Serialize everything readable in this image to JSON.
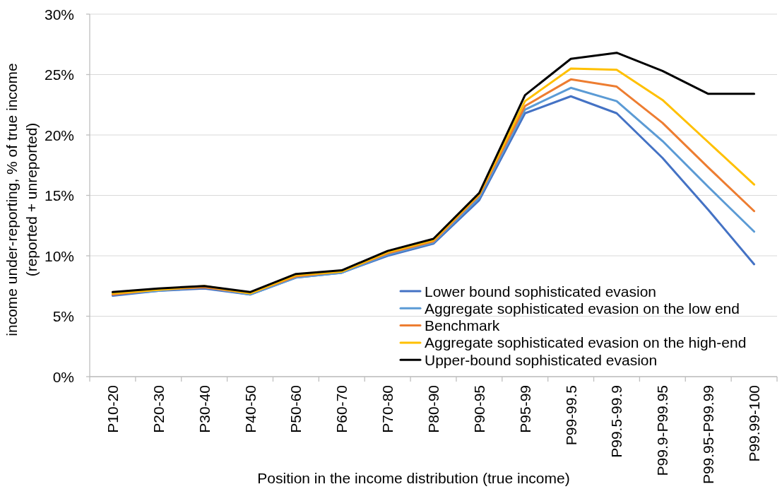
{
  "chart_data": {
    "type": "line",
    "categories": [
      "P10-20",
      "P20-30",
      "P30-40",
      "P40-50",
      "P50-60",
      "P60-70",
      "P70-80",
      "P80-90",
      "P90-95",
      "P95-99",
      "P99-99.5",
      "P99.5-99.9",
      "P99.9-P99.95",
      "P99.95-P99.99",
      "P99.99-100"
    ],
    "xlabel": "Position in the income distribution (true income)",
    "ylabel": "income under-reporting, % of true income\n(reported + unreported)",
    "series": [
      {
        "name": "Lower bound sophisticated evasion",
        "color": "#4472c4",
        "values": [
          6.7,
          7.1,
          7.3,
          6.8,
          8.2,
          8.6,
          10.0,
          11.0,
          14.6,
          21.8,
          23.2,
          21.8,
          18.1,
          13.8,
          9.3
        ]
      },
      {
        "name": "Aggregate sophisticated evasion on the low end",
        "color": "#5b9bd5",
        "values": [
          6.8,
          7.1,
          7.4,
          6.8,
          8.2,
          8.6,
          10.1,
          11.1,
          14.8,
          22.1,
          23.9,
          22.8,
          19.5,
          15.7,
          12.0
        ]
      },
      {
        "name": "Benchmark",
        "color": "#ed7d31",
        "values": [
          6.8,
          7.2,
          7.4,
          6.9,
          8.3,
          8.7,
          10.2,
          11.2,
          15.0,
          22.4,
          24.6,
          24.0,
          21.0,
          17.3,
          13.7
        ]
      },
      {
        "name": "Aggregate sophisticated evasion on the high-end",
        "color": "#ffc000",
        "values": [
          6.9,
          7.2,
          7.5,
          6.9,
          8.4,
          8.7,
          10.3,
          11.3,
          15.1,
          22.8,
          25.5,
          25.4,
          22.9,
          19.4,
          15.9
        ]
      },
      {
        "name": "Upper-bound sophisticated evasion",
        "color": "#000000",
        "values": [
          7.0,
          7.3,
          7.5,
          7.0,
          8.5,
          8.8,
          10.4,
          11.4,
          15.2,
          23.3,
          26.3,
          26.8,
          25.3,
          23.4,
          23.4
        ]
      }
    ],
    "ylim": [
      0,
      30
    ],
    "yticks": [
      {
        "value": 0,
        "label": "0%"
      },
      {
        "value": 5,
        "label": "5%"
      },
      {
        "value": 10,
        "label": "10%"
      },
      {
        "value": 15,
        "label": "15%"
      },
      {
        "value": 20,
        "label": "20%"
      },
      {
        "value": 25,
        "label": "25%"
      },
      {
        "value": 30,
        "label": "30%"
      }
    ],
    "grid": "y",
    "legend": "bottom right"
  }
}
